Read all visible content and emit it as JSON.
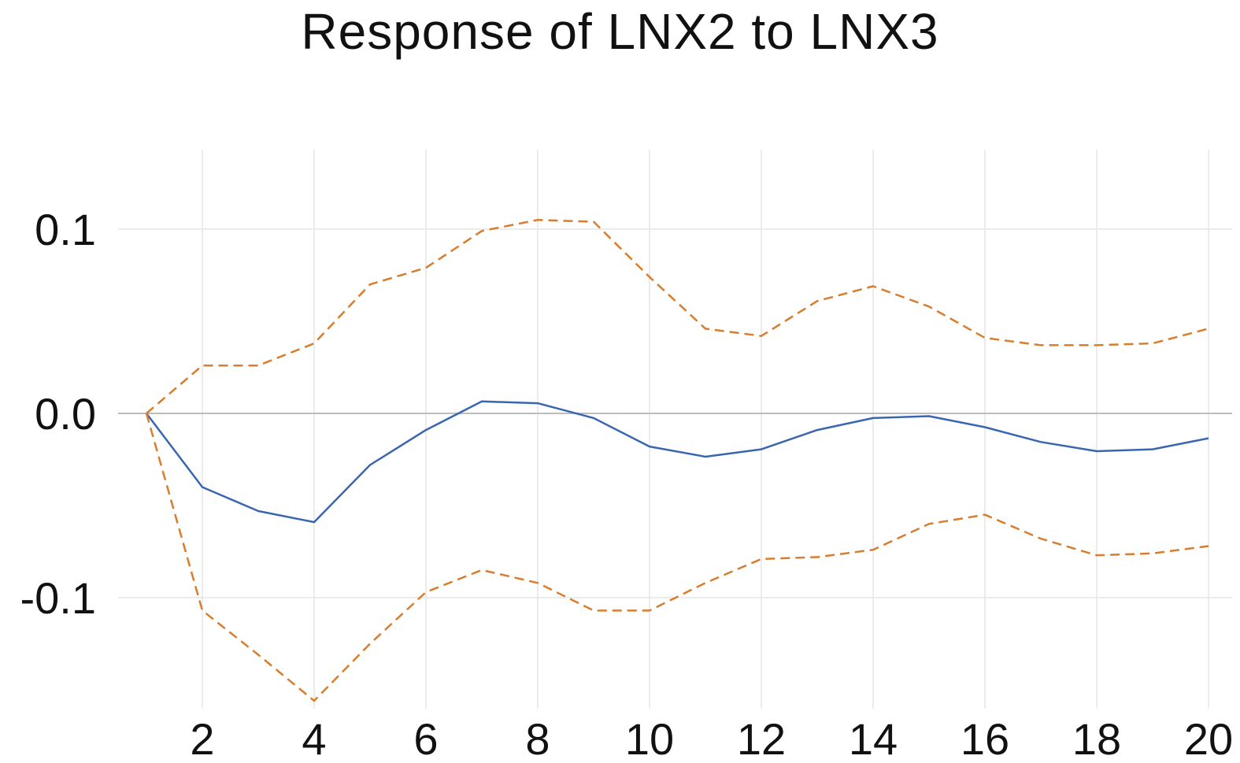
{
  "chart_data": {
    "type": "line",
    "title": "Response of LNX2 to LNX3",
    "xlabel": "",
    "ylabel": "",
    "x": [
      1,
      2,
      3,
      4,
      5,
      6,
      7,
      8,
      9,
      10,
      11,
      12,
      13,
      14,
      15,
      16,
      17,
      18,
      19,
      20
    ],
    "xlim": [
      0.5,
      20.5
    ],
    "ylim": [
      -0.155,
      0.14
    ],
    "x_ticks": [
      2,
      4,
      6,
      8,
      10,
      12,
      14,
      16,
      18,
      20
    ],
    "x_tick_labels": [
      "2",
      "4",
      "6",
      "8",
      "10",
      "12",
      "14",
      "16",
      "18",
      "20"
    ],
    "y_ticks": [
      0.1,
      0.0,
      -0.1
    ],
    "y_tick_labels": [
      "0.1",
      "0.0",
      "-0.1"
    ],
    "grid": true,
    "zero_line": true,
    "series": [
      {
        "role": "response",
        "style": "solid",
        "color": "#3a66b0",
        "values": [
          0.0,
          -0.04,
          -0.053,
          -0.059,
          -0.028,
          -0.009,
          0.0065,
          0.0055,
          -0.0025,
          -0.018,
          -0.0235,
          -0.0195,
          -0.009,
          -0.0025,
          -0.0015,
          -0.0075,
          -0.0155,
          -0.0205,
          -0.0195,
          -0.0135
        ]
      },
      {
        "role": "upper-band",
        "style": "dashed",
        "color": "#d87d2e",
        "values": [
          0.0,
          0.026,
          0.026,
          0.038,
          0.07,
          0.079,
          0.099,
          0.105,
          0.104,
          0.074,
          0.046,
          0.042,
          0.061,
          0.069,
          0.058,
          0.041,
          0.037,
          0.037,
          0.038,
          0.046
        ]
      },
      {
        "role": "lower-band",
        "style": "dashed",
        "color": "#d87d2e",
        "values": [
          0.0,
          -0.107,
          -0.131,
          -0.156,
          -0.125,
          -0.097,
          -0.085,
          -0.092,
          -0.107,
          -0.107,
          -0.092,
          -0.079,
          -0.078,
          -0.074,
          -0.06,
          -0.055,
          -0.068,
          -0.077,
          -0.076,
          -0.072
        ]
      }
    ]
  },
  "colors": {
    "grid": "#e6e6e6",
    "zero_line": "#bdbdbd",
    "text": "#111111"
  }
}
